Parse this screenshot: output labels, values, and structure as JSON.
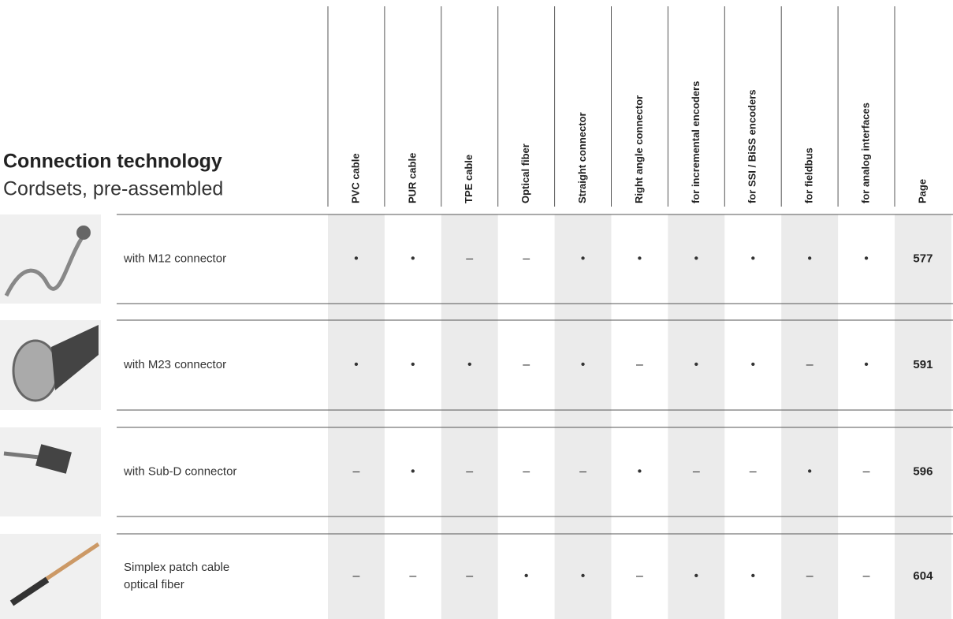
{
  "header": {
    "title": "Connection technology",
    "subtitle": "Cordsets, pre-assembled"
  },
  "columns": [
    "PVC cable",
    "PUR cable",
    "TPE cable",
    "Optical fiber",
    "Straight connector",
    "Right angle connector",
    "for incremental encoders",
    "for SSI / BiSS encoders",
    "for fieldbus",
    "for analog interfaces",
    "Page"
  ],
  "rows": [
    {
      "label": [
        "with M12 connector"
      ],
      "cells": [
        "•",
        "•",
        "–",
        "–",
        "•",
        "•",
        "•",
        "•",
        "•",
        "•"
      ],
      "page": 577
    },
    {
      "label": [
        "with M23 connector"
      ],
      "cells": [
        "•",
        "•",
        "•",
        "–",
        "•",
        "–",
        "•",
        "•",
        "–",
        "•"
      ],
      "page": 591
    },
    {
      "label": [
        "with Sub-D connector"
      ],
      "cells": [
        "–",
        "•",
        "–",
        "–",
        "–",
        "•",
        "–",
        "–",
        "•",
        "–"
      ],
      "page": 596
    },
    {
      "label": [
        "Simplex patch cable",
        "optical fiber"
      ],
      "cells": [
        "–",
        "–",
        "–",
        "•",
        "•",
        "–",
        "•",
        "•",
        "–",
        "–"
      ],
      "page": 604
    }
  ]
}
